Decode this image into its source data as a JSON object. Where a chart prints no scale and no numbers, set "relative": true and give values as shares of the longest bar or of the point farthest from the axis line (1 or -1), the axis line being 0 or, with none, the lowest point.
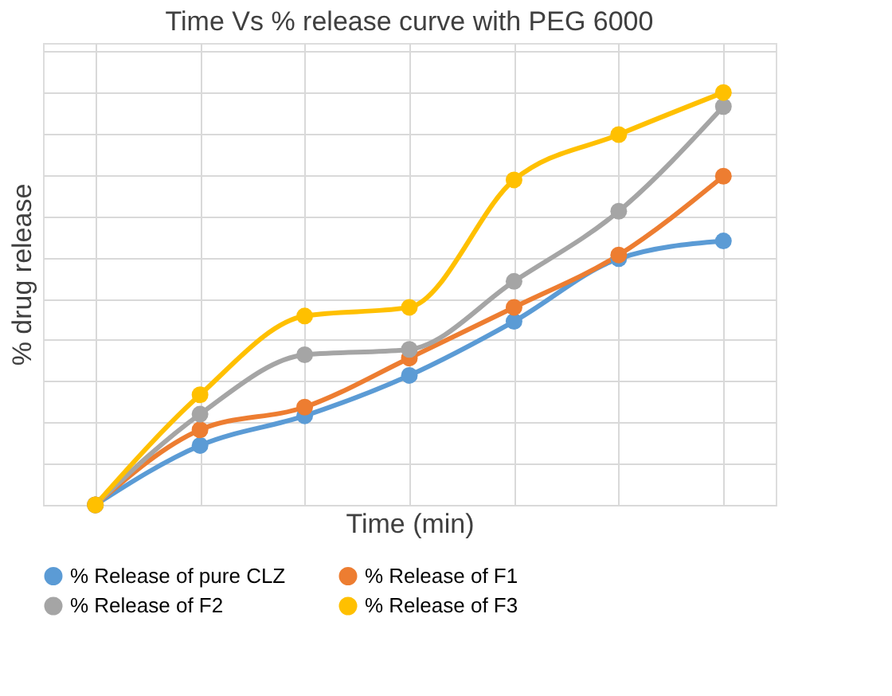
{
  "chart_data": {
    "type": "line",
    "title": "Time Vs % release curve with PEG 6000",
    "xlabel": "Time (min)",
    "ylabel": "% drug release",
    "relative": true,
    "categories": [
      null,
      null,
      null,
      null,
      null,
      null,
      null
    ],
    "grid": true,
    "legend": "bottom",
    "marker": "circle",
    "line_style": "solid",
    "tick_labels": false,
    "series": [
      {
        "name": "% Release of pure CLZ",
        "color": "#5b9bd5",
        "values": [
          0,
          0.144,
          0.216,
          0.314,
          0.445,
          0.597,
          0.64
        ]
      },
      {
        "name": "% Release of  F1",
        "color": "#ed7d31",
        "values": [
          0,
          0.182,
          0.237,
          0.356,
          0.479,
          0.606,
          0.797
        ]
      },
      {
        "name": "% Release of  F2",
        "color": "#a5a5a5",
        "values": [
          0,
          0.22,
          0.364,
          0.377,
          0.542,
          0.712,
          0.966
        ]
      },
      {
        "name": "% Release of  F3",
        "color": "#ffc000",
        "values": [
          0,
          0.267,
          0.458,
          0.479,
          0.788,
          0.898,
          1
        ]
      }
    ]
  }
}
